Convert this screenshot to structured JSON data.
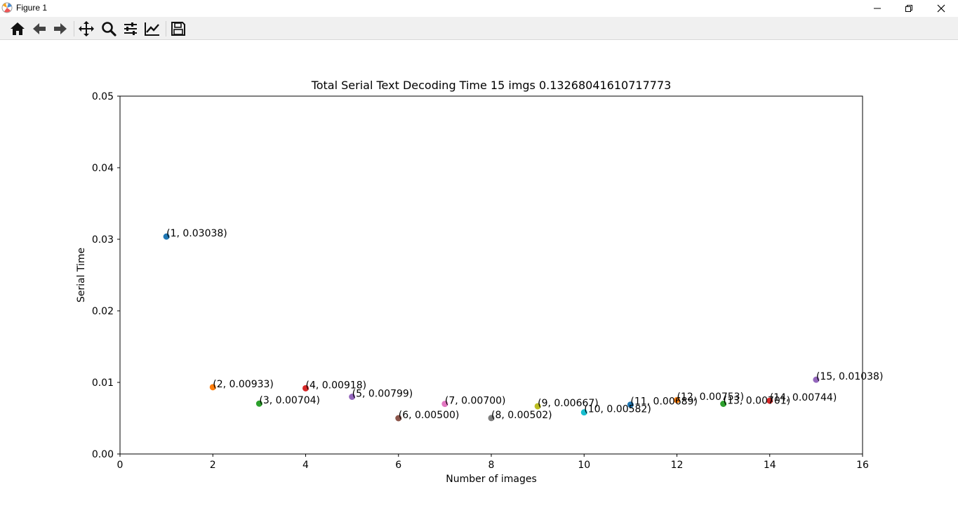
{
  "window": {
    "title": "Figure 1"
  },
  "toolbar": {
    "buttons": [
      {
        "name": "home-icon",
        "tooltip": "Home"
      },
      {
        "name": "back-icon",
        "tooltip": "Back"
      },
      {
        "name": "forward-icon",
        "tooltip": "Forward"
      },
      {
        "name": "pan-icon",
        "tooltip": "Pan"
      },
      {
        "name": "zoom-icon",
        "tooltip": "Zoom"
      },
      {
        "name": "configure-subplots-icon",
        "tooltip": "Subplots"
      },
      {
        "name": "edit-axis-icon",
        "tooltip": "Customize"
      },
      {
        "name": "save-icon",
        "tooltip": "Save"
      }
    ]
  },
  "chart_data": {
    "type": "scatter",
    "title": "Total Serial Text Decoding Time 15 imgs 0.13268041610717773",
    "xlabel": "Number of images",
    "ylabel": "Serial Time",
    "xlim": [
      0,
      16
    ],
    "ylim": [
      0,
      0.05
    ],
    "xticks": [
      "0",
      "2",
      "4",
      "6",
      "8",
      "10",
      "12",
      "14",
      "16"
    ],
    "yticks": [
      "0.00",
      "0.01",
      "0.02",
      "0.03",
      "0.04",
      "0.05"
    ],
    "grid": false,
    "points": [
      {
        "x": 1,
        "y": 0.03038,
        "label": "(1, 0.03038)",
        "color": "#1f77b4"
      },
      {
        "x": 2,
        "y": 0.00933,
        "label": "(2, 0.00933)",
        "color": "#ff7f0e"
      },
      {
        "x": 3,
        "y": 0.00704,
        "label": "(3, 0.00704)",
        "color": "#2ca02c"
      },
      {
        "x": 4,
        "y": 0.00918,
        "label": "(4, 0.00918)",
        "color": "#d62728"
      },
      {
        "x": 5,
        "y": 0.00799,
        "label": "(5, 0.00799)",
        "color": "#9467bd"
      },
      {
        "x": 6,
        "y": 0.005,
        "label": "(6, 0.00500)",
        "color": "#8c564b"
      },
      {
        "x": 7,
        "y": 0.007,
        "label": "(7, 0.00700)",
        "color": "#e377c2"
      },
      {
        "x": 8,
        "y": 0.00502,
        "label": "(8, 0.00502)",
        "color": "#7f7f7f"
      },
      {
        "x": 9,
        "y": 0.00667,
        "label": "(9, 0.00667)",
        "color": "#bcbd22"
      },
      {
        "x": 10,
        "y": 0.00582,
        "label": "(10, 0.00582)",
        "color": "#17becf"
      },
      {
        "x": 11,
        "y": 0.00689,
        "label": "(11, 0.00689)",
        "color": "#1f77b4"
      },
      {
        "x": 12,
        "y": 0.00753,
        "label": "(12, 0.00753)",
        "color": "#ff7f0e"
      },
      {
        "x": 13,
        "y": 0.00701,
        "label": "(13, 0.00701)",
        "color": "#2ca02c"
      },
      {
        "x": 14,
        "y": 0.00744,
        "label": "(14, 0.00744)",
        "color": "#d62728"
      },
      {
        "x": 15,
        "y": 0.01038,
        "label": "(15, 0.01038)",
        "color": "#9467bd"
      }
    ]
  }
}
